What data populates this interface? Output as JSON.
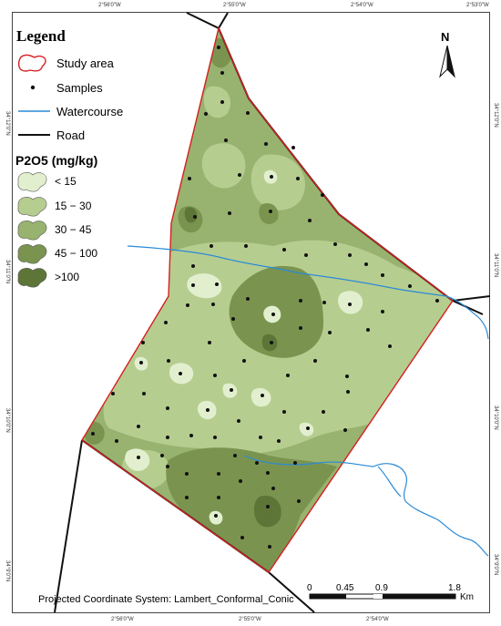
{
  "legend": {
    "title": "Legend",
    "items": {
      "study_area": "Study area",
      "samples": "Samples",
      "watercourse": "Watercourse",
      "road": "Road"
    }
  },
  "p2o5": {
    "title": "P2O5 (mg/kg)",
    "classes": [
      {
        "label": "< 15",
        "color": "#e2efcf"
      },
      {
        "label": "15 − 30",
        "color": "#b6cd90"
      },
      {
        "label": "30 − 45",
        "color": "#98b26f"
      },
      {
        "label": "45 − 100",
        "color": "#7a9450"
      },
      {
        "label": ">100",
        "color": "#5d7638"
      }
    ]
  },
  "north_arrow": {
    "label": "N"
  },
  "scale_bar": {
    "labels": [
      "0",
      "0.45",
      "0.9",
      "1.8"
    ],
    "unit": "Km"
  },
  "projection": "Projected Coordinate System: Lambert_Conformal_Conic",
  "grid_labels": {
    "top": [
      "2°56'0\"W",
      "2°55'0\"W",
      "2°54'0\"W",
      "2°53'0\"W"
    ],
    "bottom": [
      "2°56'0\"W",
      "2°55'0\"W",
      "2°54'0\"W"
    ],
    "left": [
      "34°12'0\"N",
      "34°11'0\"N",
      "34°10'0\"N",
      "34°9'0\"N"
    ],
    "right": [
      "34°12'0\"N",
      "34°11'0\"N",
      "34°10'0\"N",
      "34°9'0\"N"
    ]
  },
  "colors": {
    "study_area_border": "#d42020",
    "watercourse": "#2a8ad6",
    "road": "#111111",
    "sample": "#111111"
  }
}
